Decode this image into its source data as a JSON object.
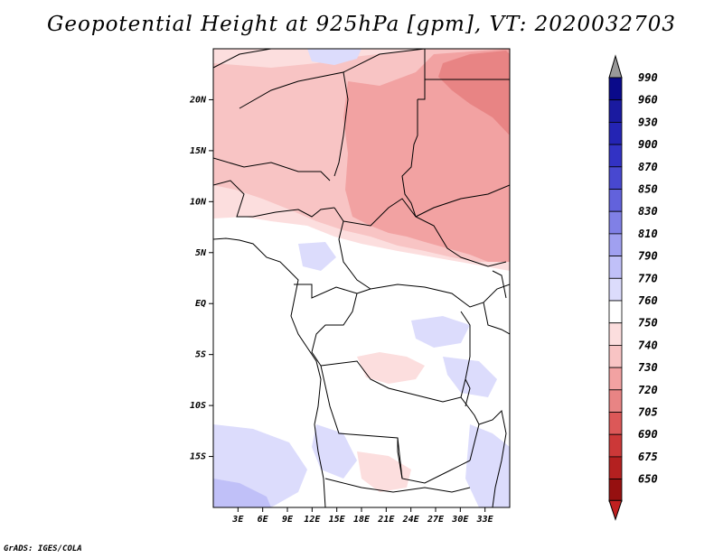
{
  "title": "Geopotential Height at 925hPa [gpm], VT: 2020032703",
  "credit": "GrADS: IGES/COLA",
  "map": {
    "lon_range": [
      0,
      36
    ],
    "lat_range": [
      -20,
      25
    ],
    "lat_ticks": [
      {
        "label": "20N",
        "value": 20
      },
      {
        "label": "15N",
        "value": 15
      },
      {
        "label": "10N",
        "value": 10
      },
      {
        "label": "5N",
        "value": 5
      },
      {
        "label": "EQ",
        "value": 0
      },
      {
        "label": "5S",
        "value": -5
      },
      {
        "label": "10S",
        "value": -10
      },
      {
        "label": "15S",
        "value": -15
      }
    ],
    "lon_ticks": [
      {
        "label": "3E",
        "value": 3
      },
      {
        "label": "6E",
        "value": 6
      },
      {
        "label": "9E",
        "value": 9
      },
      {
        "label": "12E",
        "value": 12
      },
      {
        "label": "15E",
        "value": 15
      },
      {
        "label": "18E",
        "value": 18
      },
      {
        "label": "21E",
        "value": 21
      },
      {
        "label": "24E",
        "value": 24
      },
      {
        "label": "27E",
        "value": 27
      },
      {
        "label": "30E",
        "value": 30
      },
      {
        "label": "33E",
        "value": 33
      }
    ]
  },
  "colorbar": {
    "levels": [
      {
        "label": "990",
        "color": "#0a0a8a"
      },
      {
        "label": "960",
        "color": "#1a1aa0"
      },
      {
        "label": "930",
        "color": "#2424b4"
      },
      {
        "label": "900",
        "color": "#3232c4"
      },
      {
        "label": "870",
        "color": "#4848d0"
      },
      {
        "label": "850",
        "color": "#6262dc"
      },
      {
        "label": "830",
        "color": "#8080e6"
      },
      {
        "label": "810",
        "color": "#a0a0f0"
      },
      {
        "label": "790",
        "color": "#c0c0f8"
      },
      {
        "label": "770",
        "color": "#dcdcfc"
      },
      {
        "label": "760",
        "color": "#ffffff"
      },
      {
        "label": "750",
        "color": "#fcdede"
      },
      {
        "label": "740",
        "color": "#f8c4c4"
      },
      {
        "label": "730",
        "color": "#f2a2a2"
      },
      {
        "label": "720",
        "color": "#e88484"
      },
      {
        "label": "705",
        "color": "#dc5858"
      },
      {
        "label": "690",
        "color": "#cc3838"
      },
      {
        "label": "675",
        "color": "#b42020"
      },
      {
        "label": "650",
        "color": "#961010"
      }
    ],
    "top_arrow_color": "#999999",
    "bottom_arrow_color": "#c02020"
  }
}
